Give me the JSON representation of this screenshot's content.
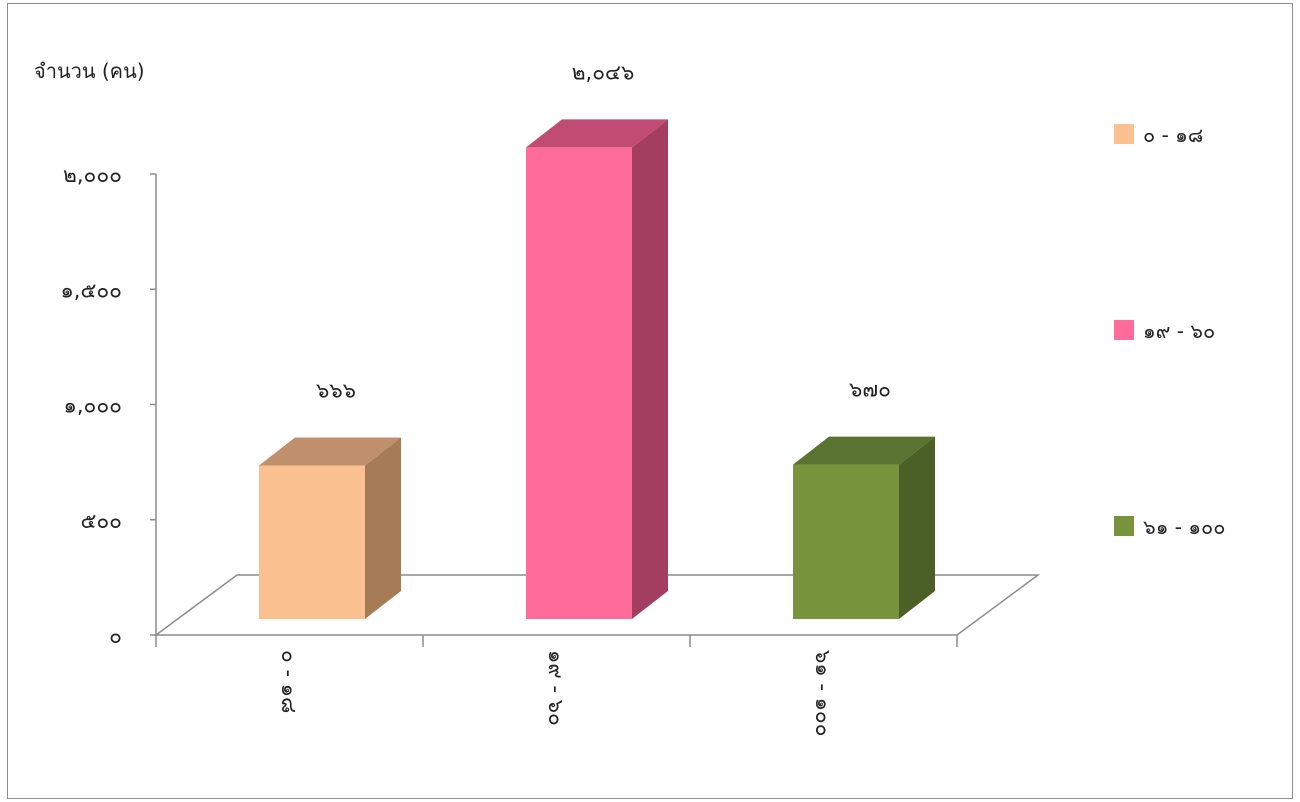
{
  "chart_data": {
    "type": "bar",
    "style": "3d-column",
    "ylabel": "จำนวน (คน)",
    "ylim": [
      0,
      2000
    ],
    "yticks": [
      {
        "value": 0,
        "label": "๐"
      },
      {
        "value": 500,
        "label": "๕๐๐"
      },
      {
        "value": 1000,
        "label": "๑,๐๐๐"
      },
      {
        "value": 1500,
        "label": "๑,๕๐๐"
      },
      {
        "value": 2000,
        "label": "๒,๐๐๐"
      }
    ],
    "categories": [
      "๐ - ๑๘",
      "๑๙ - ๖๐",
      "๖๑ - ๑๐๐"
    ],
    "values": [
      666,
      2046,
      670
    ],
    "data_labels": [
      "๖๖๖",
      "๒,๐๔๖",
      "๖๗๐"
    ],
    "colors": [
      {
        "front": "#fac090",
        "side": "#a67c57",
        "top": "#c0906c"
      },
      {
        "front": "#ff6b9a",
        "side": "#a33e60",
        "top": "#c04c74"
      },
      {
        "front": "#77933c",
        "side": "#4a6026",
        "top": "#5a7330"
      }
    ],
    "legend": {
      "position": "right",
      "entries": [
        "๐ - ๑๘",
        "๑๙ - ๖๐",
        "๖๑ - ๑๐๐"
      ]
    },
    "grid": false
  }
}
